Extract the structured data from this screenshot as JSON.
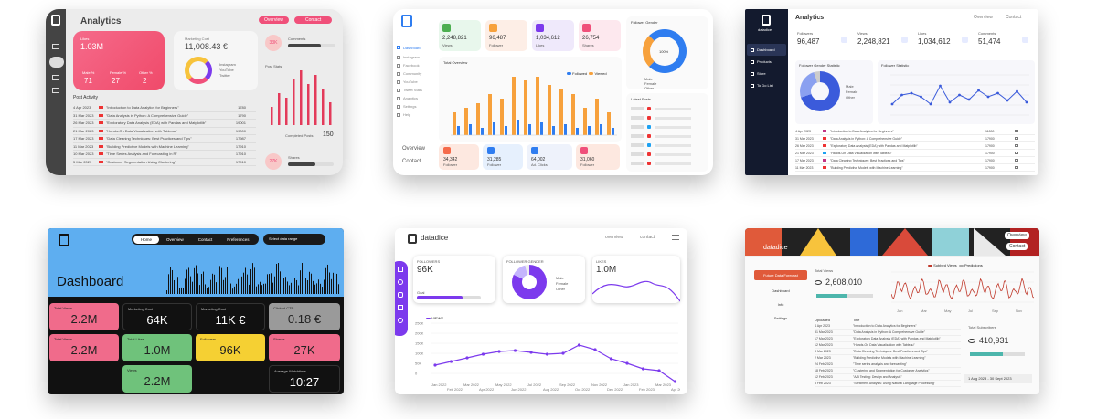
{
  "p1": {
    "title": "Analytics",
    "btn_overview": "Overview",
    "btn_contact": "Contact",
    "likes_label": "Likes",
    "likes_value": "1.03M",
    "marketing_label": "Marketing Cost",
    "marketing_value": "11,008.43 €",
    "badge_val": "33K",
    "comments_label": "Comments",
    "post_stats": "Post Stats",
    "male_label": "Male %",
    "male_val": "71",
    "female_label": "Female %",
    "female_val": "27",
    "other_label": "Other %",
    "other_val": "2",
    "legend": [
      "Instagram",
      "YouTube",
      "Twitter"
    ],
    "post_activity": "Post Activity",
    "completed_label": "Completed Posts",
    "completed_val": "150",
    "shares_badge": "27K",
    "shares_label": "Shares",
    "rows": [
      {
        "date": "4 Apr 2023",
        "title": "\"Introduction to Data Analytics for Beginners\"",
        "num": "1780"
      },
      {
        "date": "31 Mar 2023",
        "title": "\"Data Analysis in Python: A Comprehensive Guide\"",
        "num": "1790"
      },
      {
        "date": "26 Mar 2023",
        "title": "\"Exploratory Data Analysis (EDA) with Pandas and Matplotlib\"",
        "num": "19001"
      },
      {
        "date": "21 Mar 2023",
        "title": "\"Hands-On Data Visualization with Tableau\"",
        "num": "19000"
      },
      {
        "date": "17 Mar 2023",
        "title": "\"Data Cleaning Techniques: Best Practices and Tips\"",
        "num": "17987"
      },
      {
        "date": "11 Mar 2023",
        "title": "\"Building Predictive Models with Machine Learning\"",
        "num": "17910"
      },
      {
        "date": "10 Mar 2023",
        "title": "\"Time Series Analysis and Forecasting in R\"",
        "num": "17910"
      },
      {
        "date": "5 Mar 2023",
        "title": "\"Customer Segmentation Using Clustering\"",
        "num": "17910"
      }
    ]
  },
  "p2": {
    "nav": [
      "Dashboard",
      "Instagram",
      "Facebook",
      "Community",
      "YouTube",
      "Tweet Stats",
      "Analytics",
      "Settings",
      "Help"
    ],
    "stats": [
      {
        "v": "2,248,821",
        "l": "Views"
      },
      {
        "v": "96,487",
        "l": "Follower"
      },
      {
        "v": "1,034,612",
        "l": "Likes"
      },
      {
        "v": "26,754",
        "l": "Shares"
      }
    ],
    "follower_gender": "Follower Gender",
    "gender_pct": "100%",
    "gender_legend": [
      "Male",
      "Female",
      "Other"
    ],
    "total_overview": "Total Overview",
    "chart_legend": [
      "Followed",
      "Viewed"
    ],
    "latest_posts": "Latest Posts",
    "overview": "Overview",
    "contact": "Contact",
    "bottom_stats": [
      {
        "v": "34,342",
        "l": "Follower"
      },
      {
        "v": "31,285",
        "l": "Follower"
      },
      {
        "v": "64,002",
        "l": "Ad. Clicks"
      },
      {
        "v": "31,060",
        "l": "Follower"
      }
    ]
  },
  "p3": {
    "title": "Analytics",
    "overview": "Overview",
    "contact": "Contact",
    "logo": "datadice",
    "nav": [
      "Dashboard",
      "Products",
      "Store",
      "To Do List"
    ],
    "stats": [
      {
        "l": "Followers",
        "v": "96,487"
      },
      {
        "l": "Views",
        "v": "2,248,821"
      },
      {
        "l": "Likes",
        "v": "1,034,612"
      },
      {
        "l": "Comments",
        "v": "51,474"
      }
    ],
    "gender_title": "Follower Gender Statistic",
    "gender_legend": [
      "Male",
      "Female",
      "Other"
    ],
    "followers_title": "Follower Statistic",
    "rows": [
      {
        "date": "4 Apr 2023",
        "title": "\"Introduction to Data Analytics for Beginners\"",
        "num": "11800"
      },
      {
        "date": "31 Mar 2023",
        "title": "\"Data Analysis in Python: A Comprehensive Guide\"",
        "num": "17900"
      },
      {
        "date": "26 Mar 2023",
        "title": "\"Exploratory Data Analysis (EDA) with Pandas and Matplotlib\"",
        "num": "17900"
      },
      {
        "date": "21 Mar 2023",
        "title": "\"Hands-On Data Visualization with Tableau\"",
        "num": "17900"
      },
      {
        "date": "17 Mar 2023",
        "title": "\"Data Cleaning Techniques: Best Practices and Tips\"",
        "num": "17900"
      },
      {
        "date": "11 Mar 2023",
        "title": "\"Building Predictive Models with Machine Learning\"",
        "num": "17900"
      }
    ]
  },
  "p4": {
    "nav": [
      "Home",
      "Overview",
      "Contact",
      "Preferences"
    ],
    "select": "Select data range",
    "title": "Dashboard",
    "tiles": [
      {
        "l": "Total Views",
        "v": "2.2M",
        "c": "#f06b8b"
      },
      {
        "l": "Marketing Cost",
        "v": "64K",
        "c": "#111111"
      },
      {
        "l": "Marketing Cost",
        "v": "11K €",
        "c": "#111111"
      },
      {
        "l": "Clicked CTR",
        "v": "0.18 €",
        "c": "#9a9a9a"
      },
      {
        "l": "Total Views",
        "v": "2.2M",
        "c": "#f06b8b"
      },
      {
        "l": "Total Likes",
        "v": "1.0M",
        "c": "#6fc27b"
      },
      {
        "l": "Followers",
        "v": "96K",
        "c": "#f5d033"
      },
      {
        "l": "Shares",
        "v": "27K",
        "c": "#f06b8b"
      },
      {
        "l": "Views",
        "v": "2.2M",
        "c": "#6fc27b"
      },
      {
        "l": "Average Watchtime",
        "v": "10:27",
        "c": "#111111"
      }
    ]
  },
  "p5": {
    "logo": "datadice",
    "overview": "overview",
    "contact": "contact",
    "followers_label": "FOLLOWERS",
    "followers_val": "96K",
    "goal_label": "Goal",
    "gender_label": "FOLLOWER GENDER",
    "gender_legend": [
      "Male",
      "Female",
      "Other"
    ],
    "likes_label": "LIKES",
    "likes_val": "1.0M",
    "views_legend": "VIEWS",
    "x_ticks": [
      "Jan 2022",
      "Mar 2022",
      "May 2022",
      "Jul 2022",
      "Sep 2022",
      "Nov 2022",
      "Jan 2023",
      "Mar 2023",
      "Feb 2022",
      "Apr 2022",
      "Jun 2022",
      "Aug 2022",
      "Oct 2022",
      "Dec 2022",
      "Feb 2023",
      "Apr 2023"
    ],
    "y_ticks": [
      "250K",
      "200K",
      "150K",
      "100K",
      "50K",
      "0"
    ]
  },
  "p6": {
    "logo": "datadice",
    "overview": "Overview",
    "contact": "Contact",
    "nav_active": "Future Data Forecast",
    "nav": [
      "Dashboard",
      "Info",
      "Settings"
    ],
    "total_views_label": "Total Views",
    "total_views_val": "2,608,010",
    "legend": [
      "Subbed Views",
      "Predictions"
    ],
    "x_ticks": [
      "Jan",
      "Mar",
      "May",
      "Jul",
      "Sep",
      "Nov"
    ],
    "uploaded": "Uploaded",
    "title_col": "Title",
    "subs_label": "Total Subscribers",
    "subs_val": "410,931",
    "date_range": "1 Aug 2023 - 30 Sept 2023",
    "rows": [
      {
        "date": "4 Apr 2023",
        "title": "\"Introduction to Data Analytics for Beginners\""
      },
      {
        "date": "31 Mar 2023",
        "title": "\"Data Analysis in Python: A Comprehensive Guide\""
      },
      {
        "date": "17 Mar 2023",
        "title": "\"Exploratory Data Analysis (EDA) with Pandas and Matplotlib\""
      },
      {
        "date": "12 Mar 2023",
        "title": "\"Hands-On Data Visualization with Tableau\""
      },
      {
        "date": "8 Mar 2023",
        "title": "\"Data Cleaning Techniques: Best Practices and Tips\""
      },
      {
        "date": "2 Mar 2023",
        "title": "\"Building Predictive Models with Machine Learning\""
      },
      {
        "date": "24 Feb 2023",
        "title": "\"Time series analysis and forecasting\""
      },
      {
        "date": "18 Feb 2023",
        "title": "\"Clustering and Segmentation for Customer Analytics\""
      },
      {
        "date": "12 Feb 2023",
        "title": "\"A/B Testing: Design and Analysis\""
      },
      {
        "date": "5 Feb 2023",
        "title": "\"Sentiment Analysis: Using Natural Language Processing\""
      }
    ]
  },
  "colors": {
    "pink": "#f0507a",
    "orange": "#f7a13c",
    "blue": "#2f7df0",
    "purple": "#7c3aed",
    "navy": "#131a2e",
    "skyblue": "#5eaef0"
  }
}
